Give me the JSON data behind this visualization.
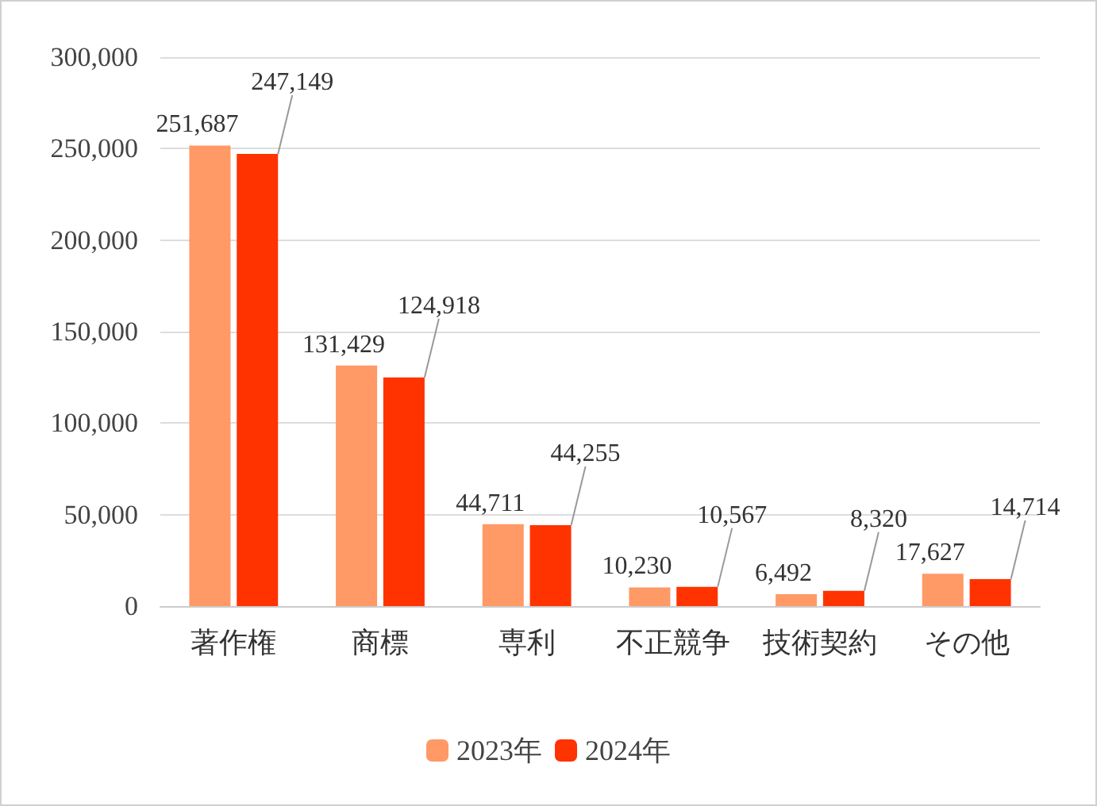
{
  "chart_data": {
    "type": "bar",
    "categories": [
      "著作権",
      "商標",
      "専利",
      "不正競争",
      "技術契約",
      "その他"
    ],
    "series": [
      {
        "name": "2023年",
        "color": "#ff9966",
        "values": [
          251687,
          131429,
          44711,
          10230,
          6492,
          17627
        ],
        "value_labels": [
          "251,687",
          "131,429",
          "44,711",
          "10,230",
          "6,492",
          "17,627"
        ]
      },
      {
        "name": "2024年",
        "color": "#ff3300",
        "values": [
          247149,
          124918,
          44255,
          10567,
          8320,
          14714
        ],
        "value_labels": [
          "247,149",
          "124,918",
          "44,255",
          "10,567",
          "8,320",
          "14,714"
        ]
      }
    ],
    "ylim": [
      0,
      300000
    ],
    "yticks": [
      0,
      {
        "value": 50000,
        "label": "50,000"
      },
      {
        "value": 100000,
        "label": "100,000"
      },
      {
        "value": 150000,
        "label": "150,000"
      },
      {
        "value": 200000,
        "label": "200,000"
      },
      {
        "value": 250000,
        "label": "250,000"
      },
      {
        "value": 300000,
        "label": "300,000"
      }
    ],
    "grid": "y",
    "legend": "bottom"
  }
}
